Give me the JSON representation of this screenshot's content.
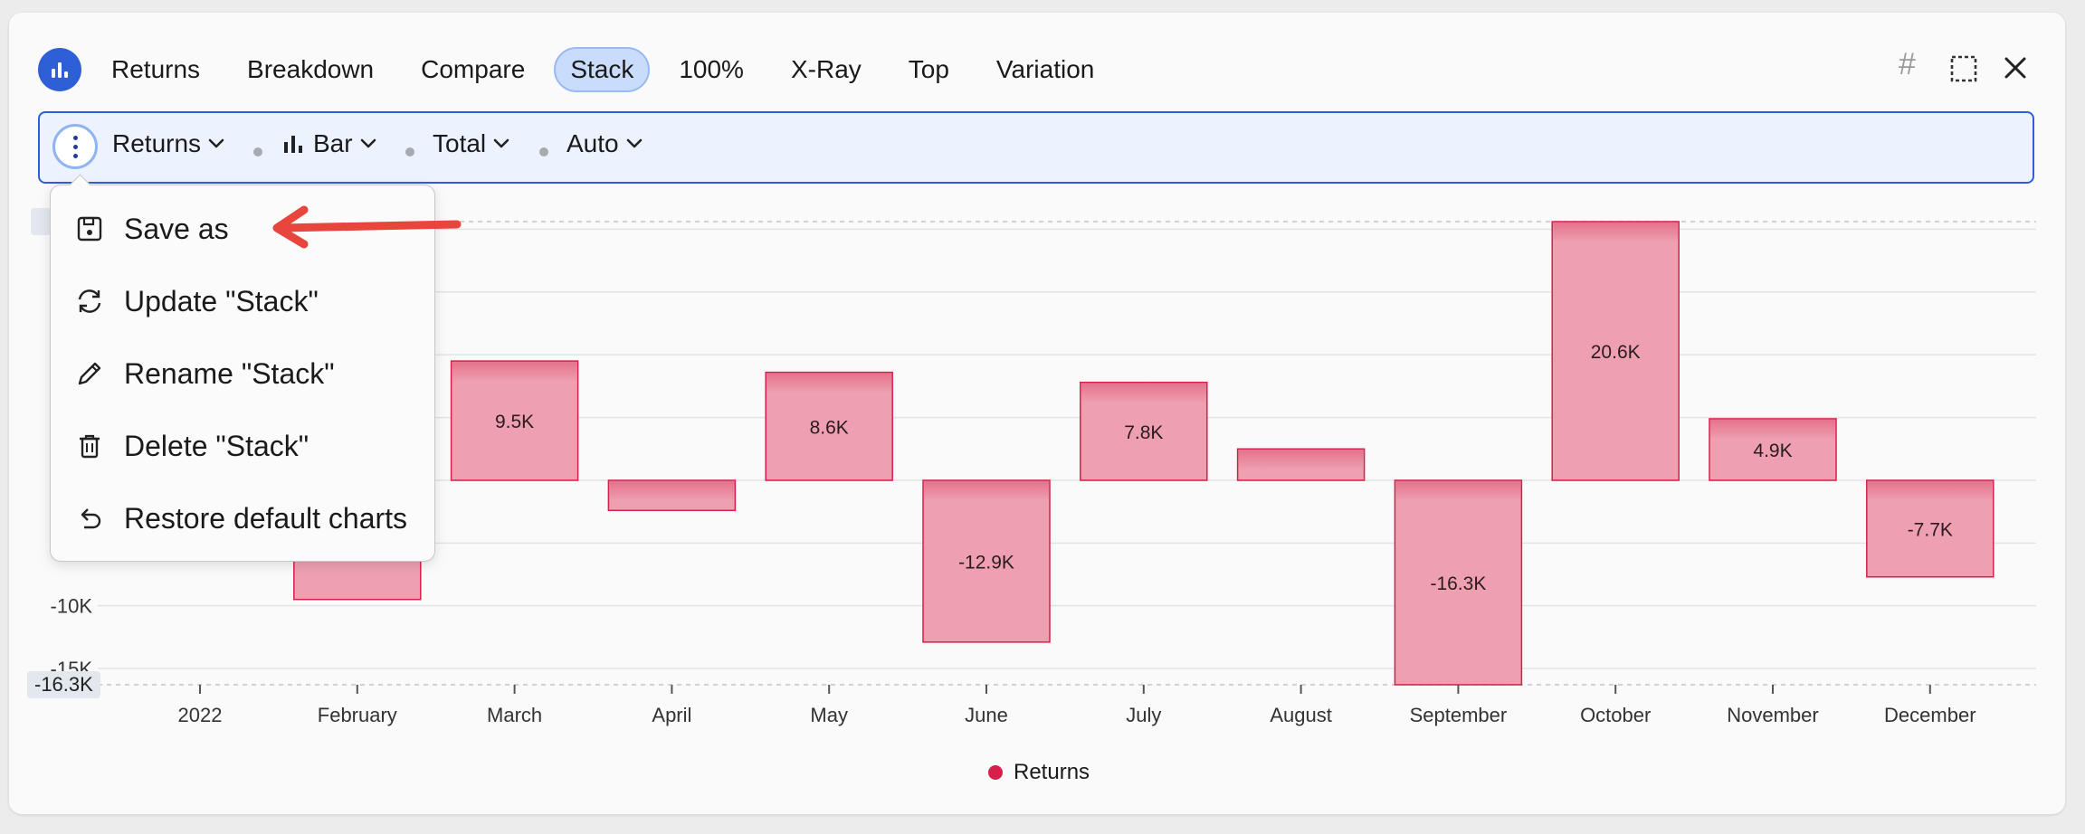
{
  "nav": {
    "tabs": [
      {
        "label": "Returns"
      },
      {
        "label": "Breakdown"
      },
      {
        "label": "Compare"
      },
      {
        "label": "Stack",
        "active": true
      },
      {
        "label": "100%"
      },
      {
        "label": "X-Ray"
      },
      {
        "label": "Top"
      },
      {
        "label": "Variation"
      }
    ]
  },
  "window": {
    "hash_symbol": "#"
  },
  "toolbar": {
    "metric": "Returns",
    "chart_type": "Bar",
    "aggregation": "Total",
    "granularity": "Auto"
  },
  "menu": {
    "items": [
      {
        "label": "Save as",
        "icon": "save-icon"
      },
      {
        "label": "Update \"Stack\"",
        "icon": "refresh-icon"
      },
      {
        "label": "Rename \"Stack\"",
        "icon": "pencil-icon"
      },
      {
        "label": "Delete \"Stack\"",
        "icon": "trash-icon"
      },
      {
        "label": "Restore default charts",
        "icon": "undo-icon"
      }
    ]
  },
  "chart_data": {
    "type": "bar",
    "categories": [
      "2022",
      "February",
      "March",
      "April",
      "May",
      "June",
      "July",
      "August",
      "September",
      "October",
      "November",
      "December"
    ],
    "series": [
      {
        "name": "Returns",
        "values": [
          null,
          -9.5,
          9.5,
          -2.4,
          8.6,
          -12.9,
          7.8,
          2.5,
          -16.3,
          20.6,
          4.9,
          -7.7
        ]
      }
    ],
    "data_labels": [
      "",
      "",
      "9.5K",
      "",
      "8.6K",
      "-12.9K",
      "7.8K",
      "",
      "-16.3K",
      "20.6K",
      "4.9K",
      "-7.7K"
    ],
    "y_ticks": [
      {
        "value": -10,
        "label": "-10K"
      },
      {
        "value": -15,
        "label": "-15K"
      }
    ],
    "ylim": [
      -16.3,
      20.6
    ],
    "unit": "K",
    "min_badge": "-16.3K",
    "grid": true,
    "legend": "bottom-center",
    "bar_fill": "#eea0b1",
    "bar_stroke": "#d61f4a"
  },
  "legend": {
    "label": "Returns"
  },
  "colors": {
    "accent": "#2f5fd7",
    "series": "#d61f4a",
    "annotation_arrow": "#e8453c"
  }
}
